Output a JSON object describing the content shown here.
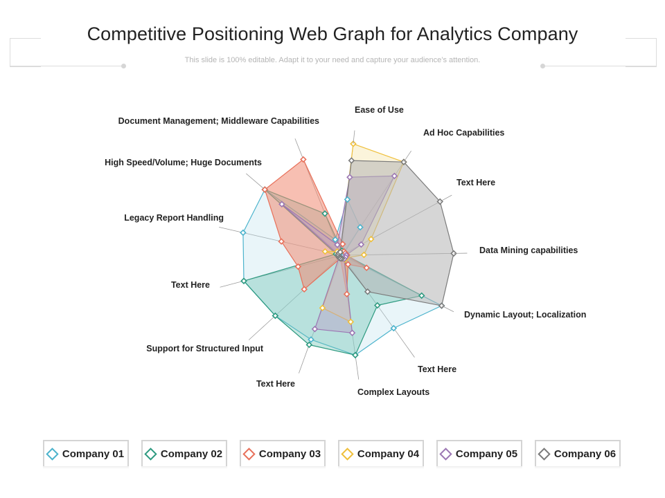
{
  "header": {
    "title": "Competitive Positioning Web Graph for Analytics Company",
    "subtitle": "This slide is 100% editable. Adapt it to your need and capture your audience’s attention."
  },
  "chart_data": {
    "type": "radar",
    "title": "Competitive Positioning Web Graph for Analytics Company",
    "axes": [
      "Ease of Use",
      "Ad Hoc Capabilities",
      "Text Here",
      "Data Mining capabilities",
      "Dynamic Layout; Localization",
      "Text Here",
      "Complex Layouts",
      "Text Here",
      "Support for Structured Input",
      "Text Here",
      "Legacy Report Handling",
      "High Speed/Volume; Huge Documents",
      "Document Management; Middleware Capabilities"
    ],
    "rlim": [
      0,
      100
    ],
    "legend_position": "bottom",
    "series": [
      {
        "name": "Company 01",
        "color": "#4bb3cc",
        "fill": "#bfe3ee",
        "fill_opacity": 0.35,
        "values": [
          50,
          30,
          2,
          2,
          100,
          80,
          90,
          80,
          80,
          90,
          90,
          90,
          15
        ]
      },
      {
        "name": "Company 02",
        "color": "#2e9a80",
        "fill": "#6fc3b4",
        "fill_opacity": 0.4,
        "values": [
          4,
          4,
          4,
          4,
          80,
          55,
          90,
          85,
          80,
          90,
          5,
          90,
          40
        ]
      },
      {
        "name": "Company 03",
        "color": "#e8705a",
        "fill": "#f08a72",
        "fill_opacity": 0.55,
        "values": [
          10,
          4,
          4,
          5,
          25,
          10,
          35,
          3,
          45,
          40,
          55,
          90,
          92
        ]
      },
      {
        "name": "Company 04",
        "color": "#efbf3a",
        "fill": "#f6e4a4",
        "fill_opacity": 0.4,
        "values": [
          100,
          100,
          30,
          20,
          5,
          5,
          60,
          50,
          3,
          3,
          15,
          5,
          3
        ]
      },
      {
        "name": "Company 05",
        "color": "#9c77b3",
        "fill": "#b7a0c8",
        "fill_opacity": 0.45,
        "values": [
          70,
          85,
          20,
          4,
          4,
          4,
          70,
          70,
          3,
          3,
          3,
          70,
          10
        ]
      },
      {
        "name": "Company 06",
        "color": "#7a7a7a",
        "fill": "#b4b4b4",
        "fill_opacity": 0.55,
        "values": [
          85,
          100,
          100,
          100,
          100,
          40,
          3,
          3,
          3,
          3,
          3,
          3,
          3
        ]
      }
    ]
  }
}
